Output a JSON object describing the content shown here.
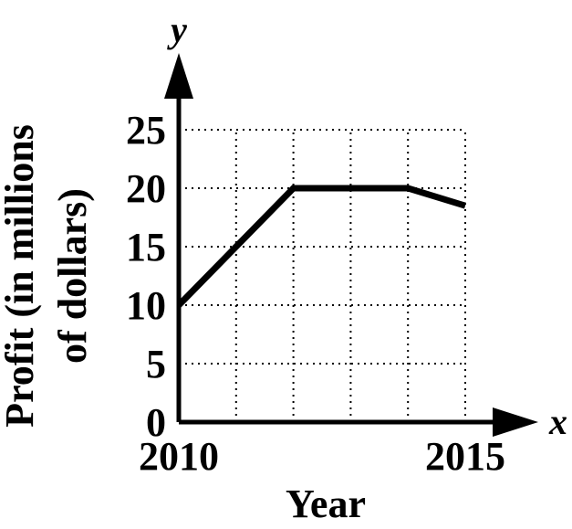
{
  "chart_data": {
    "type": "line",
    "xlabel": "Year",
    "ylabel_lines": [
      "Profit (in millions",
      "of dollars)"
    ],
    "x_axis_var": "x",
    "y_axis_var": "y",
    "x_tick_labels": [
      {
        "x": 2010,
        "label": "2010"
      },
      {
        "x": 2015,
        "label": "2015"
      }
    ],
    "y_tick_labels": [
      "0",
      "5",
      "10",
      "15",
      "20",
      "25"
    ],
    "y_ticks": [
      0,
      5,
      10,
      15,
      20,
      25
    ],
    "x_grid": [
      2011,
      2012,
      2013,
      2014,
      2015
    ],
    "xlim": [
      2010,
      2015
    ],
    "ylim": [
      0,
      25
    ],
    "grid": "dotted",
    "series": [
      {
        "x": [
          2010,
          2012,
          2014,
          2015
        ],
        "y": [
          10,
          20,
          20,
          18.5
        ]
      }
    ]
  }
}
